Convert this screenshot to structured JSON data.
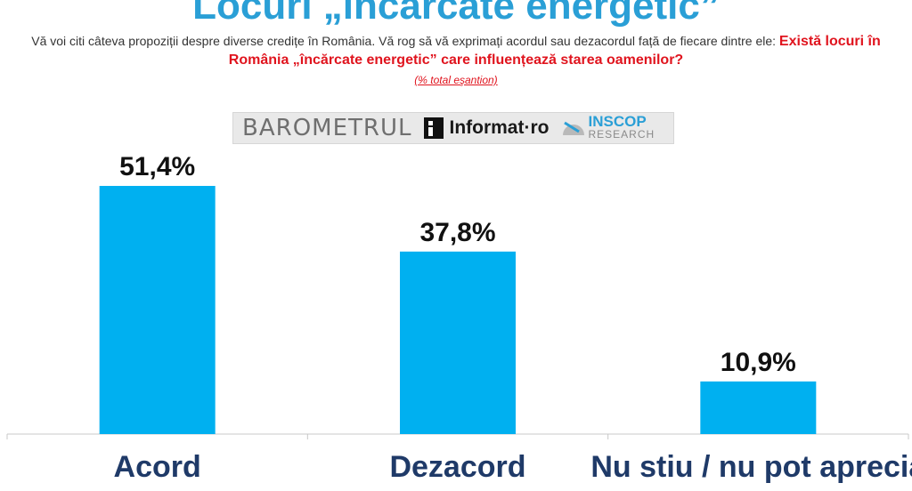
{
  "header": {
    "title": "Locuri „încărcate energetic”",
    "intro_text": "Vă voi citi câteva propoziții despre diverse credițe în România. Vă rog să vă exprimați acordul sau dezacordul față de fiecare dintre ele: ",
    "question": "Există locuri în România „încărcate energetic” care influențează starea oamenilor?",
    "base_note": "(% total eşantion)"
  },
  "logos": {
    "barometrul": "BAROMETRUL",
    "informat": "Informat·ro",
    "inscop": "INSCOP",
    "inscop_sub": "RESEARCH",
    "icons": [
      "informat-logo-icon",
      "inscop-logo-icon"
    ]
  },
  "colors": {
    "bar": "#00b0f0",
    "title": "#2a9fd6",
    "question": "#e0141e",
    "category_label": "#1f3a68"
  },
  "chart_data": {
    "type": "bar",
    "categories": [
      "Acord",
      "Dezacord",
      "Nu stiu / nu pot aprecia"
    ],
    "values": [
      51.4,
      37.8,
      10.9
    ],
    "value_labels": [
      "51,4%",
      "37,8%",
      "10,9%"
    ],
    "ylim": [
      0,
      51.4
    ],
    "grid": false,
    "legend": "none"
  }
}
